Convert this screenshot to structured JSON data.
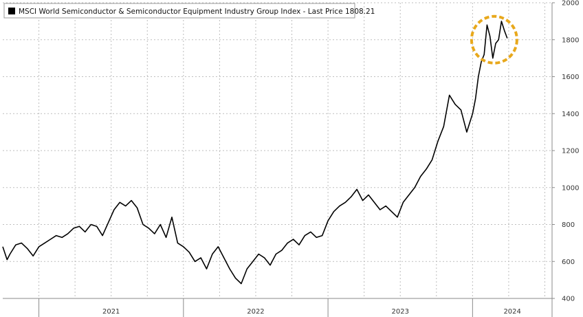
{
  "colors": {
    "line": "#000000",
    "highlight": "#e8a81c",
    "grid": "#bdbdbd",
    "axis": "#8a8a8a"
  },
  "chart_data": {
    "type": "line",
    "legend": {
      "label": "MSCI World Semiconductor & Semiconductor Equipment Industry Group Index - Last Price 1808.21",
      "placement": "top-left"
    },
    "x_axis": {
      "tick_labels": [
        "2021",
        "2022",
        "2023",
        "2024"
      ],
      "range": [
        2020.75,
        2024.55
      ]
    },
    "y_axis": {
      "position": "right",
      "ylim": [
        400,
        2000
      ],
      "ticks": [
        400,
        600,
        800,
        1000,
        1200,
        1400,
        1600,
        1800,
        2000
      ]
    },
    "grid": true,
    "annotation": "dashed-circle around recent peak",
    "series": [
      {
        "name": "MSCI World Semiconductor & Semiconductor Equipment Industry Group Index",
        "x": [
          2020.75,
          2020.78,
          2020.8,
          2020.84,
          2020.88,
          2020.92,
          2020.96,
          2021.0,
          2021.04,
          2021.08,
          2021.12,
          2021.16,
          2021.2,
          2021.24,
          2021.28,
          2021.32,
          2021.36,
          2021.4,
          2021.44,
          2021.48,
          2021.52,
          2021.56,
          2021.6,
          2021.64,
          2021.68,
          2021.72,
          2021.76,
          2021.8,
          2021.84,
          2021.88,
          2021.92,
          2021.96,
          2022.0,
          2022.04,
          2022.08,
          2022.12,
          2022.16,
          2022.2,
          2022.24,
          2022.28,
          2022.32,
          2022.36,
          2022.4,
          2022.44,
          2022.48,
          2022.52,
          2022.56,
          2022.6,
          2022.64,
          2022.68,
          2022.72,
          2022.76,
          2022.8,
          2022.84,
          2022.88,
          2022.92,
          2022.96,
          2023.0,
          2023.04,
          2023.08,
          2023.12,
          2023.16,
          2023.2,
          2023.24,
          2023.28,
          2023.32,
          2023.36,
          2023.4,
          2023.44,
          2023.48,
          2023.52,
          2023.56,
          2023.6,
          2023.64,
          2023.68,
          2023.72,
          2023.76,
          2023.8,
          2023.84,
          2023.88,
          2023.92,
          2023.96,
          2024.0,
          2024.02,
          2024.04,
          2024.06,
          2024.08,
          2024.1,
          2024.12,
          2024.14,
          2024.16,
          2024.18,
          2024.2,
          2024.22,
          2024.24
        ],
        "y": [
          680,
          610,
          640,
          690,
          700,
          670,
          630,
          680,
          700,
          720,
          740,
          730,
          750,
          780,
          790,
          760,
          800,
          790,
          740,
          810,
          880,
          920,
          900,
          930,
          890,
          800,
          780,
          750,
          800,
          730,
          840,
          700,
          680,
          650,
          600,
          620,
          560,
          640,
          680,
          620,
          560,
          510,
          480,
          560,
          600,
          640,
          620,
          580,
          640,
          660,
          700,
          720,
          690,
          740,
          760,
          730,
          740,
          820,
          870,
          900,
          920,
          950,
          990,
          930,
          960,
          920,
          880,
          900,
          870,
          840,
          920,
          960,
          1000,
          1060,
          1100,
          1150,
          1250,
          1330,
          1500,
          1450,
          1420,
          1300,
          1400,
          1480,
          1600,
          1680,
          1720,
          1880,
          1820,
          1700,
          1780,
          1800,
          1900,
          1850,
          1808
        ]
      }
    ]
  }
}
